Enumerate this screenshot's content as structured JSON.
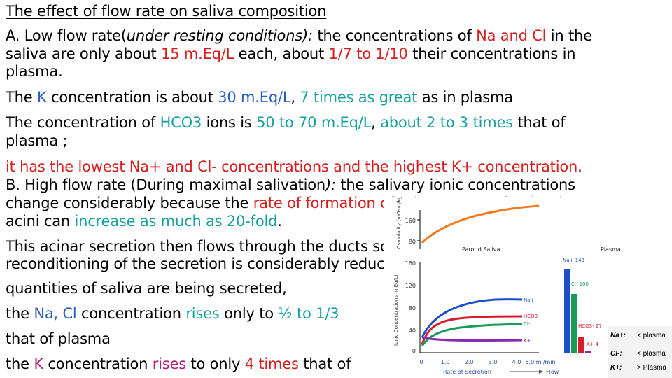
{
  "title": "The effect of flow rate on saliva composition",
  "lines": {
    "l2": [
      "A. Low flow rate(",
      "under resting conditions):",
      " the concentrations of ",
      "Na and Cl",
      " in the"
    ],
    "l3": [
      "saliva are only about ",
      "15 m.Eq/L",
      " each, about ",
      "1/7 to 1/10",
      " their concentrations in"
    ],
    "l4": [
      "plasma."
    ],
    "l5": [
      "The ",
      "K",
      " concentration is about ",
      "30 m.Eq/L",
      ", ",
      "7 times as great",
      " as in plasma"
    ],
    "l6": [
      "The concentration of ",
      "HCO3",
      "  ions is ",
      "50 to 70 m.Eq/L",
      ", ",
      "about 2 to 3 times",
      " that of"
    ],
    "l7": [
      "plasma ;"
    ],
    "l8": [
      "it has the lowest Na+ and Cl- concentrations and the highest K+ concentration",
      "."
    ],
    "l9": [
      "B. High flow rate (During maximal salivation",
      "):",
      " the salivary ionic concentrations"
    ],
    "l10": [
      "change considerably because the ",
      "rate of formation of primary secretion by the"
    ],
    "l11": [
      "acini can ",
      "increase as much as 20-fold",
      "."
    ],
    "l12": [
      "This acinar secretion then flows through the ducts so rapidly that the ductal"
    ],
    "l13": [
      "reconditioning of the secretion is considerably reduced. Therefore, when copious"
    ],
    "l14": [
      "quantities of saliva are being secreted,"
    ],
    "l15": [
      "the ",
      "Na, Cl",
      " concentration ",
      "rises",
      " only to ",
      "½ to 1/3"
    ],
    "l16": [
      "that of plasma"
    ],
    "l17": [
      "the ",
      "K",
      " concentration ",
      "rises",
      " to only ",
      "4 times",
      " that of"
    ]
  },
  "figure": {
    "osmolality_axis_label": "Osmolality (mOsm/kg H2O)",
    "osmolality_ticks": [
      "160",
      "80"
    ],
    "ionic_axis_label": "Ionic Concentrations (mEq/L)",
    "ionic_ticks": [
      "160",
      "120",
      "80",
      "40",
      "0"
    ],
    "x_ticks": [
      "0",
      "1.0",
      "2.0",
      "3.0",
      "4.0",
      "5.0 ml/min"
    ],
    "x_label": "Rate of Secretion",
    "flow_label": "Flow",
    "parotid_label": "Parotid Saliva",
    "plasma_label": "Plasma",
    "series_labels": {
      "na": "Na+",
      "hco3": "HCO3-",
      "cl": "Cl-",
      "k": "K+"
    },
    "plasma_values": {
      "na": "Na+ 143",
      "cl": "Cl- 100",
      "hco3": "HCO3- 27",
      "k": "K+ 4"
    },
    "colors": {
      "osmolality": "#f07a20",
      "na": "#1e4fc8",
      "cl": "#1a9a5a",
      "hco3": "#d41e2a",
      "k": "#8a2ab0"
    }
  },
  "legend": [
    {
      "key": "Na+:",
      "value": "< plasma"
    },
    {
      "key": "Cl-:",
      "value": "< plasma"
    },
    {
      "key": "K+:",
      "value": "> Plasma"
    }
  ]
}
